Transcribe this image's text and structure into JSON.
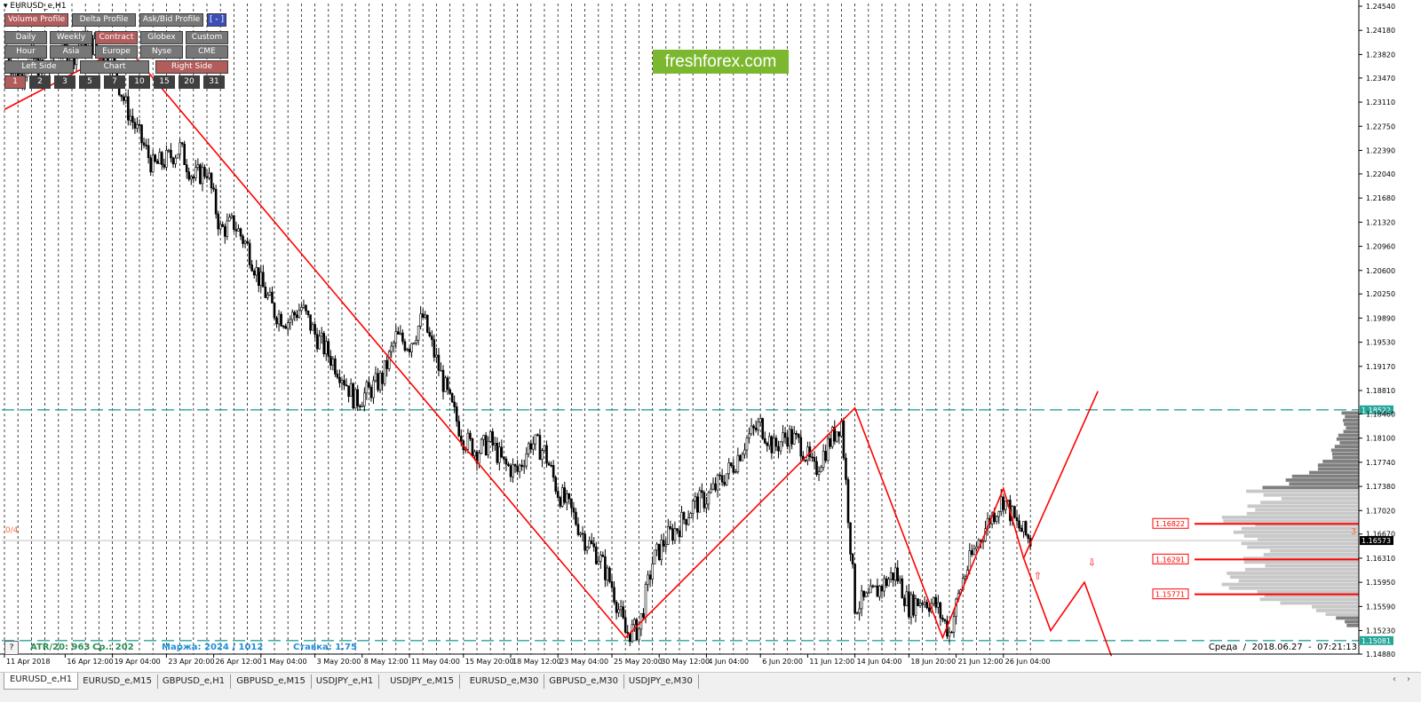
{
  "window": {
    "symbol_title": "EURUSD_e,H1"
  },
  "panel": {
    "row1": [
      {
        "label": "Volume Profile",
        "style": "red"
      },
      {
        "label": "Delta Profile",
        "style": "gray"
      },
      {
        "label": "Ask/Bid Profile",
        "style": "gray"
      },
      {
        "label": "[ - ]",
        "style": "blue"
      }
    ],
    "row2": [
      {
        "label": "Daily",
        "style": "gray"
      },
      {
        "label": "Weekly",
        "style": "gray"
      },
      {
        "label": "Contract",
        "style": "red"
      },
      {
        "label": "Globex",
        "style": "gray"
      },
      {
        "label": "Custom",
        "style": "gray"
      }
    ],
    "row3": [
      {
        "label": "Hour",
        "style": "gray"
      },
      {
        "label": "Asia",
        "style": "gray"
      },
      {
        "label": "Europe",
        "style": "gray"
      },
      {
        "label": "Nyse",
        "style": "gray"
      },
      {
        "label": "CME",
        "style": "gray"
      }
    ],
    "row4": [
      {
        "label": "Left Side",
        "style": "gray"
      },
      {
        "label": "Chart",
        "style": "gray"
      },
      {
        "label": "Right Side",
        "style": "red"
      }
    ],
    "row5": [
      {
        "label": "1",
        "style": "red"
      },
      {
        "label": "2",
        "style": "dark"
      },
      {
        "label": "3",
        "style": "dark"
      },
      {
        "label": "5",
        "style": "dark"
      },
      {
        "label": "7",
        "style": "dark"
      },
      {
        "label": "10",
        "style": "dark"
      },
      {
        "label": "15",
        "style": "dark"
      },
      {
        "label": "20",
        "style": "dark"
      },
      {
        "label": "31",
        "style": "dark"
      }
    ]
  },
  "watermark": "freshforex.com",
  "info_bar": {
    "help_button": "?",
    "atr": "ATR/20: 963",
    "avg": "Ср.: 202",
    "margin": "Маржа: 2024 / 1012",
    "rate": "Ставка: 1.75"
  },
  "left_marker": "0/4",
  "right_marker": "3",
  "datetime_label": "Среда  /  2018.06.27  -  07:21:13",
  "colors": {
    "candles": "#000000",
    "zigzag": "#ff0000",
    "levels": "#26a69a",
    "profile_dark": "#7f7f7f",
    "profile_light": "#c8c8c8",
    "watermark_bg": "#7cb82f"
  },
  "tabs": [
    {
      "label": "EURUSD_e,H1",
      "active": true
    },
    {
      "label": "EURUSD_e,M15",
      "active": false
    },
    {
      "label": "GBPUSD_e,H1",
      "active": false
    },
    {
      "label": "GBPUSD_e,M15",
      "active": false
    },
    {
      "label": "USDJPY_e,H1",
      "active": false
    },
    {
      "label": "USDJPY_e,M15",
      "active": false
    },
    {
      "label": "EURUSD_e,M30",
      "active": false
    },
    {
      "label": "GBPUSD_e,M30",
      "active": false
    },
    {
      "label": "USDJPY_e,M30",
      "active": false
    }
  ],
  "tab_nav": [
    "‹",
    "›"
  ],
  "chart_data": {
    "type": "candlestick",
    "symbol": "EURUSD_e",
    "timeframe": "H1",
    "ylim": [
      1.1488,
      1.2458
    ],
    "y_ticks": [
      "1.24540",
      "1.24180",
      "1.23820",
      "1.23470",
      "1.23110",
      "1.22750",
      "1.22390",
      "1.22040",
      "1.21680",
      "1.21320",
      "1.20960",
      "1.20600",
      "1.20250",
      "1.19890",
      "1.19530",
      "1.19170",
      "1.18810",
      "1.18460",
      "1.18100",
      "1.17740",
      "1.17380",
      "1.17020",
      "1.16670",
      "1.16310",
      "1.15950",
      "1.15590",
      "1.15230",
      "1.14880"
    ],
    "x_ticks": [
      {
        "label": "11 Apr 2018",
        "x": 0.0
      },
      {
        "label": "16 Apr 12:00",
        "x": 4.5
      },
      {
        "label": "19 Apr 04:00",
        "x": 8.0
      },
      {
        "label": "23 Apr 20:00",
        "x": 12.0
      },
      {
        "label": "26 Apr 12:00",
        "x": 15.5
      },
      {
        "label": "1 May 04:00",
        "x": 19.0
      },
      {
        "label": "3 May 20:00",
        "x": 23.0
      },
      {
        "label": "8 May 12:00",
        "x": 26.5
      },
      {
        "label": "11 May 04:00",
        "x": 30.0
      },
      {
        "label": "15 May 20:00",
        "x": 34.0
      },
      {
        "label": "18 May 12:00",
        "x": 37.5
      },
      {
        "label": "23 May 04:00",
        "x": 41.0
      },
      {
        "label": "25 May 20:00",
        "x": 45.0
      },
      {
        "label": "30 May 12:00",
        "x": 48.5
      },
      {
        "label": "4 Jun 04:00",
        "x": 52.0
      },
      {
        "label": "6 Jun 20:00",
        "x": 56.0
      },
      {
        "label": "11 Jun 12:00",
        "x": 59.5
      },
      {
        "label": "14 Jun 04:00",
        "x": 63.0
      },
      {
        "label": "18 Jun 20:00",
        "x": 67.0
      },
      {
        "label": "21 Jun 12:00",
        "x": 70.5
      },
      {
        "label": "26 Jun 04:00",
        "x": 74.0
      }
    ],
    "x_end": 107.0,
    "vertical_grid_step": 1.0,
    "grid_end": 76.0,
    "price_path": [
      [
        0,
        1.239
      ],
      [
        1,
        1.2345
      ],
      [
        2,
        1.2378
      ],
      [
        3,
        1.2352
      ],
      [
        4,
        1.2395
      ],
      [
        5,
        1.238
      ],
      [
        6,
        1.2405
      ],
      [
        7,
        1.2388
      ],
      [
        8,
        1.2368
      ],
      [
        9,
        1.2305
      ],
      [
        10,
        1.226
      ],
      [
        11,
        1.2215
      ],
      [
        12,
        1.2225
      ],
      [
        13,
        1.2242
      ],
      [
        14,
        1.2198
      ],
      [
        15,
        1.221
      ],
      [
        16,
        1.212
      ],
      [
        17,
        1.213
      ],
      [
        18,
        1.2095
      ],
      [
        19,
        1.204
      ],
      [
        20,
        1.1998
      ],
      [
        21,
        1.1985
      ],
      [
        22,
        1.2005
      ],
      [
        23,
        1.1965
      ],
      [
        24,
        1.1935
      ],
      [
        25,
        1.1905
      ],
      [
        26,
        1.1865
      ],
      [
        27,
        1.188
      ],
      [
        28,
        1.19
      ],
      [
        29,
        1.196
      ],
      [
        30,
        1.195
      ],
      [
        31,
        1.199
      ],
      [
        32,
        1.1925
      ],
      [
        33,
        1.1862
      ],
      [
        34,
        1.181
      ],
      [
        35,
        1.179
      ],
      [
        36,
        1.1805
      ],
      [
        37,
        1.177
      ],
      [
        38,
        1.176
      ],
      [
        39,
        1.1805
      ],
      [
        40,
        1.179
      ],
      [
        41,
        1.173
      ],
      [
        42,
        1.17
      ],
      [
        43,
        1.166
      ],
      [
        44,
        1.1635
      ],
      [
        45,
        1.159
      ],
      [
        46,
        1.152
      ],
      [
        47,
        1.1525
      ],
      [
        48,
        1.1625
      ],
      [
        49,
        1.166
      ],
      [
        50,
        1.168
      ],
      [
        51,
        1.171
      ],
      [
        52,
        1.172
      ],
      [
        53,
        1.1745
      ],
      [
        54,
        1.177
      ],
      [
        55,
        1.181
      ],
      [
        56,
        1.183
      ],
      [
        57,
        1.1795
      ],
      [
        58,
        1.1815
      ],
      [
        59,
        1.18
      ],
      [
        60,
        1.176
      ],
      [
        61,
        1.18
      ],
      [
        62,
        1.1835
      ],
      [
        63,
        1.156
      ],
      [
        64,
        1.157
      ],
      [
        65,
        1.159
      ],
      [
        66,
        1.161
      ],
      [
        67,
        1.156
      ],
      [
        68,
        1.157
      ],
      [
        69,
        1.156
      ],
      [
        70,
        1.152
      ],
      [
        71,
        1.16
      ],
      [
        72,
        1.165
      ],
      [
        73,
        1.169
      ],
      [
        74,
        1.172
      ],
      [
        75,
        1.168
      ],
      [
        76,
        1.1657
      ]
    ],
    "zigzag": [
      [
        0,
        1.23
      ],
      [
        9,
        1.2395
      ],
      [
        46,
        1.15125
      ],
      [
        63,
        1.1855
      ],
      [
        69.5,
        1.15125
      ],
      [
        74,
        1.1735
      ],
      [
        75.5,
        1.1631
      ],
      [
        77.5,
        1.1523
      ],
      [
        80,
        1.1595
      ],
      [
        82,
        1.1485
      ]
    ],
    "zigzag_up": [
      [
        75.5,
        1.1631
      ],
      [
        81,
        1.188
      ]
    ],
    "levels": [
      {
        "price": 1.18522,
        "label": "1.18522"
      },
      {
        "price": 1.15081,
        "label": "1.15081"
      }
    ],
    "current_price": {
      "price": 1.16573,
      "label": "1.16573"
    },
    "profile_levels": [
      {
        "price": 1.16822,
        "label": "1.16822"
      },
      {
        "price": 1.16291,
        "label": "1.16291"
      },
      {
        "price": 1.15771,
        "label": "1.15771"
      }
    ],
    "volume_profile": [
      [
        1.185,
        20
      ],
      [
        1.183,
        15
      ],
      [
        1.181,
        25
      ],
      [
        1.179,
        30
      ],
      [
        1.177,
        45
      ],
      [
        1.175,
        80
      ],
      [
        1.1735,
        120
      ],
      [
        1.172,
        100
      ],
      [
        1.1705,
        130
      ],
      [
        1.169,
        150
      ],
      [
        1.1675,
        130
      ],
      [
        1.166,
        135
      ],
      [
        1.1645,
        110
      ],
      [
        1.163,
        125
      ],
      [
        1.1615,
        130
      ],
      [
        1.16,
        160
      ],
      [
        1.159,
        140
      ],
      [
        1.158,
        120
      ],
      [
        1.157,
        100
      ],
      [
        1.156,
        60
      ],
      [
        1.155,
        35
      ],
      [
        1.154,
        20
      ],
      [
        1.153,
        10
      ]
    ],
    "arrows": [
      {
        "type": "up",
        "x": 76.5,
        "price": 1.1605
      },
      {
        "type": "down",
        "x": 80.5,
        "price": 1.1625
      }
    ]
  }
}
